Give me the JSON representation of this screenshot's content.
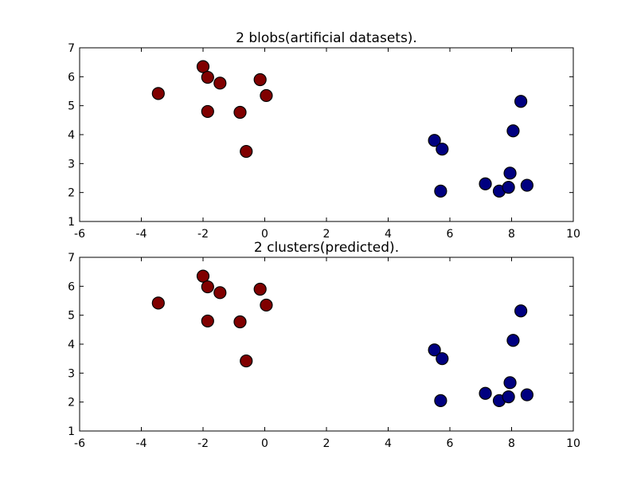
{
  "chart_data": [
    {
      "type": "scatter",
      "title": "2 blobs(artificial datasets).",
      "xlabel": "",
      "ylabel": "",
      "xlim": [
        -6,
        10
      ],
      "ylim": [
        1,
        7
      ],
      "xticks": [
        -6,
        -4,
        -2,
        0,
        2,
        4,
        6,
        8,
        10
      ],
      "yticks": [
        1,
        2,
        3,
        4,
        5,
        6,
        7
      ],
      "grid": false,
      "series": [
        {
          "color": "#800000",
          "x": [
            -3.45,
            -2.0,
            -1.85,
            -1.45,
            -1.85,
            -0.15,
            0.05,
            -0.8,
            -0.6
          ],
          "y": [
            5.42,
            6.35,
            5.98,
            5.78,
            4.8,
            5.9,
            5.35,
            4.77,
            3.42
          ]
        },
        {
          "color": "#000080",
          "x": [
            5.5,
            5.75,
            5.7,
            8.3,
            8.05,
            7.95,
            7.15,
            7.6,
            7.9,
            8.5
          ],
          "y": [
            3.8,
            3.5,
            2.05,
            5.15,
            4.13,
            2.67,
            2.3,
            2.05,
            2.18,
            2.25
          ]
        }
      ]
    },
    {
      "type": "scatter",
      "title": "2 clusters(predicted).",
      "xlabel": "",
      "ylabel": "",
      "xlim": [
        -6,
        10
      ],
      "ylim": [
        1,
        7
      ],
      "xticks": [
        -6,
        -4,
        -2,
        0,
        2,
        4,
        6,
        8,
        10
      ],
      "yticks": [
        1,
        2,
        3,
        4,
        5,
        6,
        7
      ],
      "grid": false,
      "series": [
        {
          "color": "#800000",
          "x": [
            -3.45,
            -2.0,
            -1.85,
            -1.45,
            -1.85,
            -0.15,
            0.05,
            -0.8,
            -0.6
          ],
          "y": [
            5.42,
            6.35,
            5.98,
            5.78,
            4.8,
            5.9,
            5.35,
            4.77,
            3.42
          ]
        },
        {
          "color": "#000080",
          "x": [
            5.5,
            5.75,
            5.7,
            8.3,
            8.05,
            7.95,
            7.15,
            7.6,
            7.9,
            8.5
          ],
          "y": [
            3.8,
            3.5,
            2.05,
            5.15,
            4.13,
            2.67,
            2.3,
            2.05,
            2.18,
            2.25
          ]
        }
      ]
    }
  ]
}
